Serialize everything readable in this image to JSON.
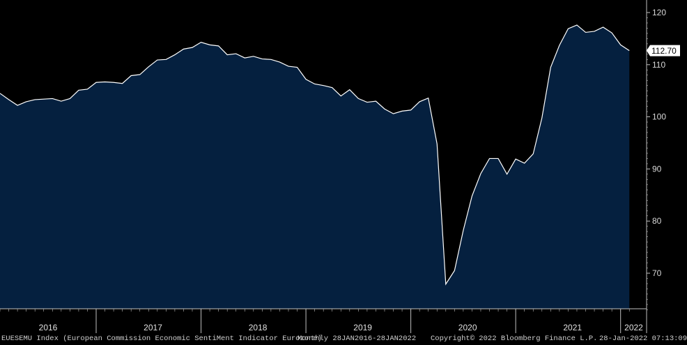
{
  "chart_data": {
    "type": "area",
    "series": [
      {
        "x": [
          "2016-01",
          "2016-02",
          "2016-03",
          "2016-04",
          "2016-05",
          "2016-06",
          "2016-07",
          "2016-08",
          "2016-09",
          "2016-10",
          "2016-11",
          "2016-12",
          "2017-01",
          "2017-02",
          "2017-03",
          "2017-04",
          "2017-05",
          "2017-06",
          "2017-07",
          "2017-08",
          "2017-09",
          "2017-10",
          "2017-11",
          "2017-12",
          "2018-01",
          "2018-02",
          "2018-03",
          "2018-04",
          "2018-05",
          "2018-06",
          "2018-07",
          "2018-08",
          "2018-09",
          "2018-10",
          "2018-11",
          "2018-12",
          "2019-01",
          "2019-02",
          "2019-03",
          "2019-04",
          "2019-05",
          "2019-06",
          "2019-07",
          "2019-08",
          "2019-09",
          "2019-10",
          "2019-11",
          "2019-12",
          "2020-01",
          "2020-02",
          "2020-03",
          "2020-04",
          "2020-05",
          "2020-06",
          "2020-07",
          "2020-08",
          "2020-09",
          "2020-10",
          "2020-11",
          "2020-12",
          "2021-01",
          "2021-02",
          "2021-03",
          "2021-04",
          "2021-05",
          "2021-06",
          "2021-07",
          "2021-08",
          "2021-09",
          "2021-10",
          "2021-11",
          "2021-12",
          "2022-01"
        ],
        "values": [
          104.5,
          103.3,
          102.2,
          102.9,
          103.3,
          103.4,
          103.5,
          103.0,
          103.5,
          105.1,
          105.3,
          106.6,
          106.7,
          106.6,
          106.4,
          107.9,
          108.1,
          109.6,
          110.9,
          111.0,
          111.9,
          113.0,
          113.3,
          114.3,
          113.8,
          113.6,
          111.9,
          112.1,
          111.3,
          111.6,
          111.1,
          111.0,
          110.5,
          109.7,
          109.5,
          107.2,
          106.3,
          106.0,
          105.6,
          104.0,
          105.2,
          103.5,
          102.8,
          103.0,
          101.5,
          100.6,
          101.1,
          101.3,
          102.9,
          103.6,
          94.8,
          67.9,
          70.5,
          78.2,
          84.8,
          89.1,
          92.0,
          92.0,
          89.0,
          91.9,
          91.1,
          92.9,
          99.8,
          109.5,
          113.7,
          116.9,
          117.6,
          116.2,
          116.4,
          117.2,
          116.1,
          113.8,
          112.7
        ]
      }
    ],
    "ylim": [
      63,
      122
    ],
    "yticks": [
      70,
      80,
      90,
      100,
      110,
      120
    ],
    "xticks": [
      "2016",
      "2017",
      "2018",
      "2019",
      "2020",
      "2021",
      "2022"
    ],
    "last_value_label": "112.70",
    "grid": false,
    "colors": {
      "fill": "#05203f",
      "line": "#ffffff",
      "background": "#000000",
      "axis": "#bfbfbf",
      "label_box": "#ffffff"
    }
  },
  "footer": {
    "description": "EUESEMU Index (European Commission Economic SentiMent Indicator Eurozone)",
    "frequency": "Monthly 28JAN2016-28JAN2022",
    "copyright": "Copyright© 2022 Bloomberg Finance L.P.",
    "timestamp": "28-Jan-2022 07:13:09"
  }
}
